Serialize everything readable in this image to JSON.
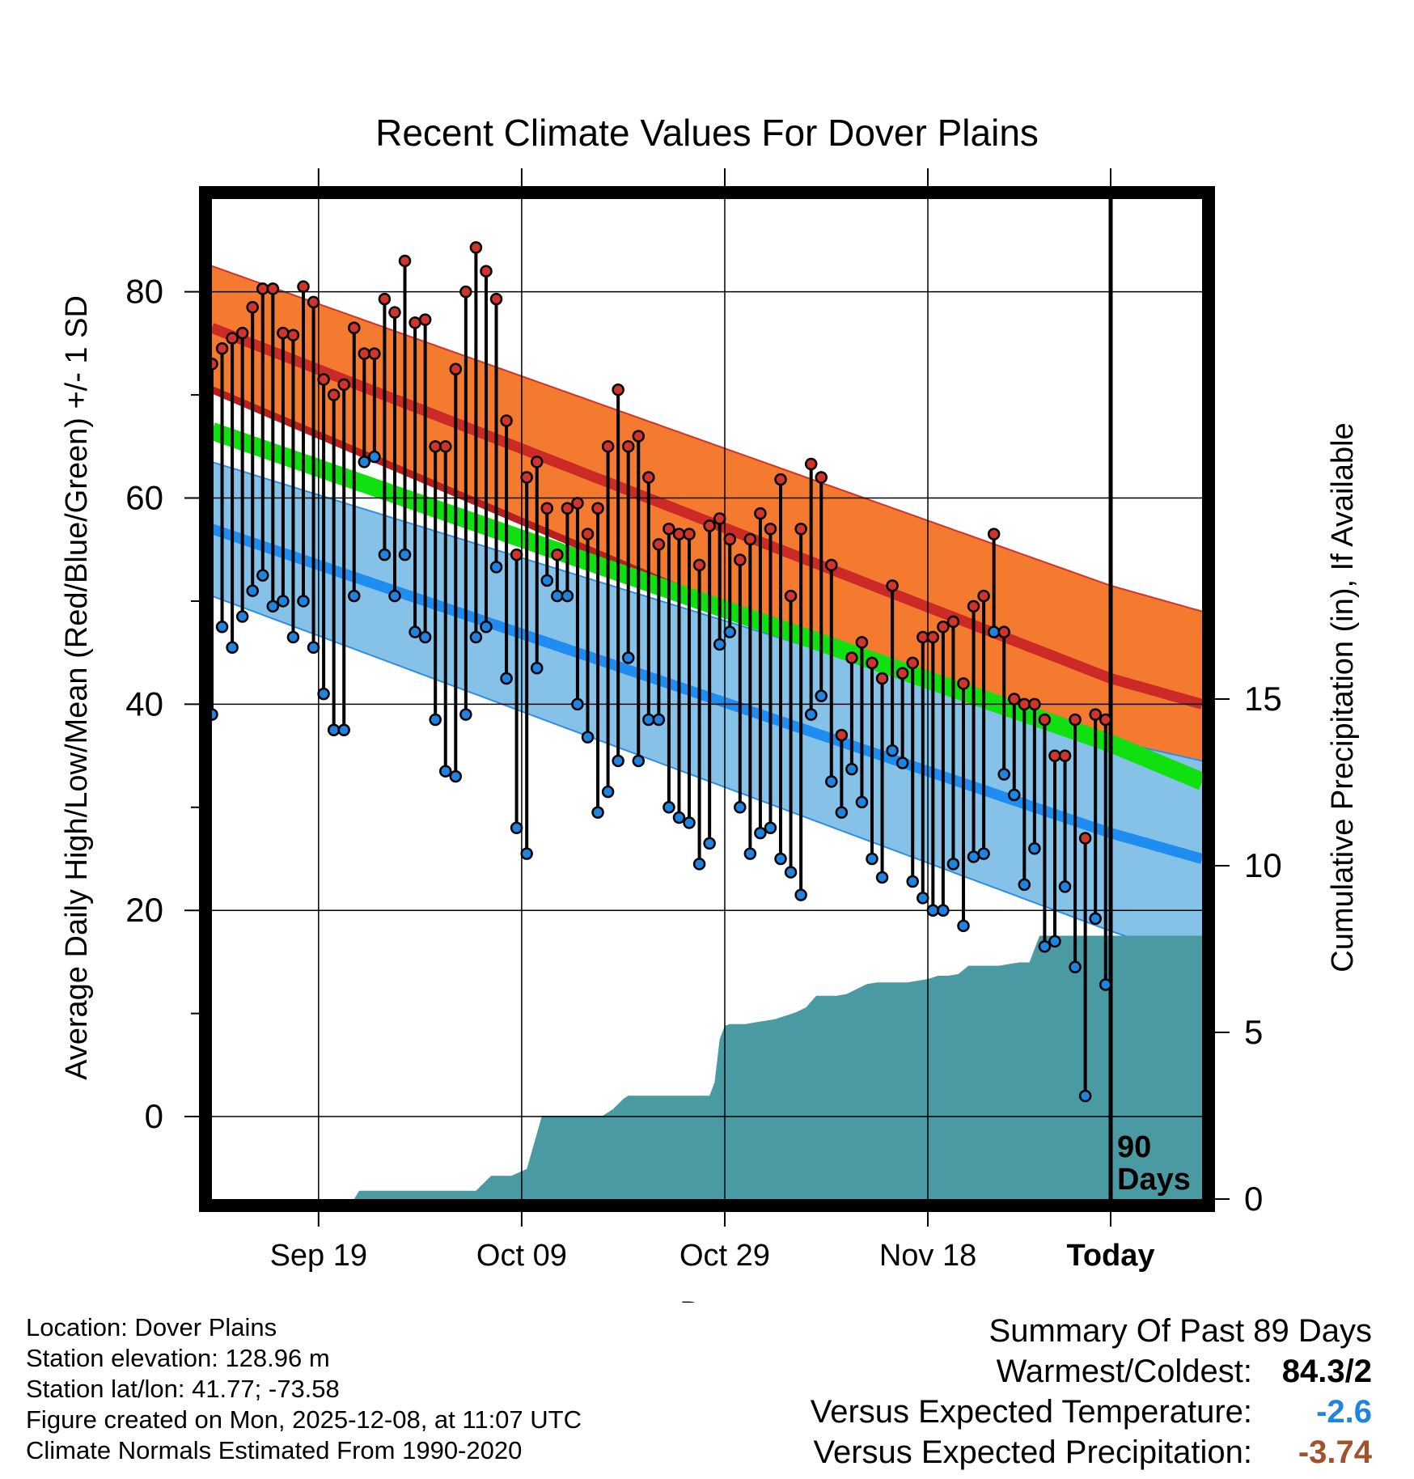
{
  "chart_data": {
    "type": "line",
    "title": "Recent Climate Values For Dover Plains",
    "xlabel": "Day",
    "ylabel": "Average Daily High/Low/Mean (Red/Blue/Green) +/- 1 SD",
    "y2label": "Cumulative Precipitation (in), If Available",
    "ylim": [
      -8,
      89
    ],
    "y2lim": [
      0,
      30
    ],
    "xlim": [
      -88.5,
      9
    ],
    "yticks": [
      "0",
      "20",
      "40",
      "60",
      "80"
    ],
    "y2ticks": [
      "0",
      "5",
      "10",
      "15"
    ],
    "xticks": [
      {
        "day": -78,
        "label": "Sep 19"
      },
      {
        "day": -58,
        "label": "Oct 09"
      },
      {
        "day": -38,
        "label": "Oct 29"
      },
      {
        "day": -18,
        "label": "Nov 18"
      },
      {
        "day": 0,
        "label": "Today"
      }
    ],
    "today_label": "90\nDays",
    "normals": {
      "days": [
        -88.5,
        0,
        9
      ],
      "high_mean": [
        76.5,
        42.5,
        40.0
      ],
      "high_sd_upper": [
        82.5,
        51.5,
        49.0
      ],
      "high_sd_lower": [
        70.5,
        33.5,
        31.0
      ],
      "avg_mean": [
        66.5,
        36.2,
        32.5
      ],
      "low_mean": [
        57.0,
        27.5,
        25.0
      ],
      "low_sd_upper": [
        63.5,
        36.5,
        34.5
      ],
      "low_sd_lower": [
        50.5,
        18.0,
        15.0
      ]
    },
    "series": [
      {
        "name": "Daily High",
        "color": "#d0342c",
        "values": [
          73.0,
          74.5,
          75.5,
          76.0,
          78.5,
          80.3,
          80.3,
          76.0,
          75.8,
          80.5,
          79.0,
          71.5,
          70.0,
          71.0,
          76.5,
          74.0,
          74.0,
          79.3,
          78.0,
          83.0,
          77.0,
          77.3,
          65.0,
          65.0,
          72.5,
          80.0,
          84.3,
          82.0,
          79.3,
          67.5,
          54.5,
          62.0,
          63.5,
          59.0,
          54.5,
          59.0,
          59.5,
          56.5,
          59.0,
          65.0,
          70.5,
          65.0,
          66.0,
          62.0,
          55.5,
          57.0,
          56.5,
          56.5,
          53.5,
          57.3,
          58.0,
          56.0,
          54.0,
          56.0,
          58.5,
          57.0,
          61.8,
          50.5,
          57.0,
          63.3,
          62.0,
          53.5,
          37.0,
          44.5,
          46.0,
          44.0,
          42.5,
          51.5,
          43.0,
          44.0,
          46.5,
          46.5,
          47.5,
          48.0,
          42.0,
          49.5,
          50.5,
          56.5,
          47.0,
          40.5,
          40.0,
          40.0,
          38.5,
          35.0,
          35.0,
          38.5,
          27.0,
          39.0,
          38.5
        ]
      },
      {
        "name": "Daily Low",
        "color": "#1f84e0",
        "values": [
          39.0,
          47.5,
          45.5,
          48.5,
          51.0,
          52.5,
          49.5,
          50.0,
          46.5,
          50.0,
          45.5,
          41.0,
          37.5,
          37.5,
          50.5,
          63.5,
          64.0,
          54.5,
          50.5,
          54.5,
          47.0,
          46.5,
          38.5,
          33.5,
          33.0,
          39.0,
          46.5,
          47.5,
          53.3,
          42.5,
          28.0,
          25.5,
          43.5,
          52.0,
          50.5,
          50.5,
          40.0,
          36.8,
          29.5,
          31.5,
          34.5,
          44.5,
          34.5,
          38.5,
          38.5,
          30.0,
          29.0,
          28.5,
          24.5,
          26.5,
          45.8,
          47.0,
          30.0,
          25.5,
          27.5,
          28.0,
          25.0,
          23.7,
          21.5,
          39.0,
          40.8,
          32.5,
          29.5,
          33.7,
          30.5,
          25.0,
          23.2,
          35.5,
          34.3,
          22.8,
          21.2,
          20.0,
          20.0,
          24.5,
          18.5,
          25.2,
          25.5,
          47.0,
          33.2,
          31.2,
          22.5,
          26.0,
          16.5,
          17.0,
          22.3,
          14.5,
          2.0,
          19.2,
          12.8
        ]
      },
      {
        "name": "Cumulative Precipitation",
        "color": "#4a9aa4",
        "unit": "in",
        "days": [
          -88.5,
          -74.5,
          -74,
          -62.5,
          -61,
          -59,
          -57.5,
          -56,
          -55,
          -54,
          -53.5,
          -52,
          -51,
          -50,
          -49,
          -48,
          -47.5,
          -46,
          -45,
          -44,
          -43,
          -42,
          -41,
          -40,
          -39.5,
          -39,
          -38.5,
          -38,
          -37.5,
          -37,
          -36,
          -35,
          -34,
          -33,
          -32,
          -31,
          -30,
          -29,
          -28,
          -27,
          -26,
          -25,
          -24,
          -23,
          -22,
          -21,
          -20,
          -19,
          -18,
          -17,
          -16,
          -15,
          -14,
          -13,
          -12,
          -11,
          -10,
          -9,
          -8,
          -7,
          -6,
          -5,
          -4,
          -3,
          9
        ],
        "values": [
          0,
          0,
          0.25,
          0.25,
          0.7,
          0.7,
          0.9,
          2.5,
          2.5,
          2.5,
          2.5,
          2.5,
          2.5,
          2.5,
          2.7,
          3.0,
          3.1,
          3.1,
          3.1,
          3.1,
          3.1,
          3.1,
          3.1,
          3.1,
          3.1,
          3.5,
          4.8,
          5.2,
          5.25,
          5.25,
          5.25,
          5.3,
          5.35,
          5.4,
          5.5,
          5.6,
          5.75,
          6.1,
          6.1,
          6.1,
          6.15,
          6.3,
          6.45,
          6.5,
          6.5,
          6.5,
          6.5,
          6.55,
          6.6,
          6.7,
          6.7,
          6.75,
          7.0,
          7.0,
          7.0,
          7.0,
          7.05,
          7.1,
          7.1,
          7.9,
          7.9,
          7.9,
          7.9,
          7.9,
          7.9
        ]
      }
    ]
  },
  "info": {
    "location": "Location: Dover Plains",
    "elevation": "Station elevation: 128.96 m",
    "latlon": "Station lat/lon: 41.77; -73.58",
    "created": "Figure created on Mon, 2025-12-08, at 11:07 UTC",
    "normals": "Climate Normals Estimated From 1990-2020"
  },
  "summary": {
    "title": "Summary Of Past 89 Days",
    "warm_cold_label": "Warmest/Coldest:",
    "warm_cold_value": "84.3/2",
    "temp_label": "Versus Expected Temperature:",
    "temp_value": "-2.6",
    "temp_color": "#1f84e0",
    "precip_label": "Versus Expected Precipitation:",
    "precip_value": "-3.74",
    "precip_color": "#a0522d"
  }
}
